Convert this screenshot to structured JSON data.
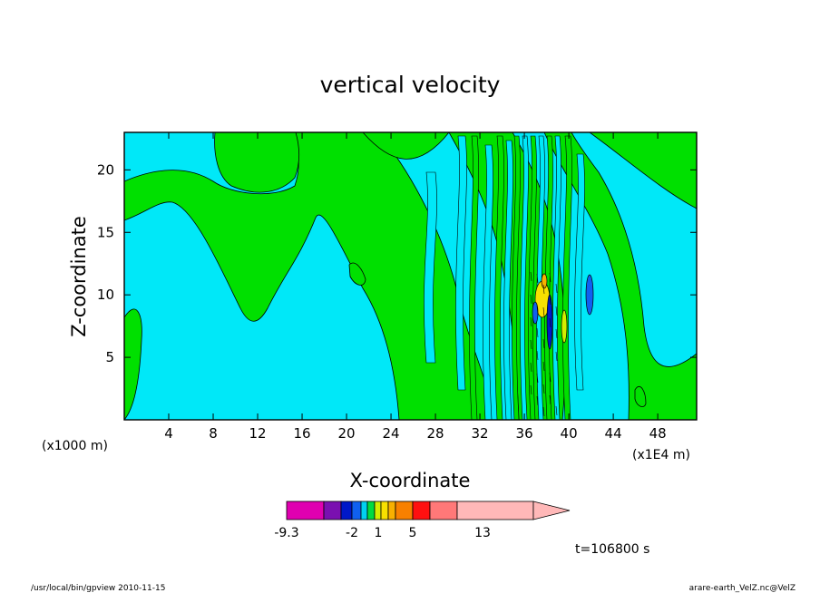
{
  "chart_data": {
    "type": "heatmap",
    "title": "vertical velocity",
    "xlabel": "X-coordinate",
    "ylabel": "Z-coordinate",
    "x_units_left": "(x1000 m)",
    "x_units_right": "(x1E4 m)",
    "xlim": [
      0,
      51.5
    ],
    "ylim": [
      0,
      23
    ],
    "xticks": [
      4,
      8,
      12,
      16,
      20,
      24,
      28,
      32,
      36,
      40,
      44,
      48
    ],
    "yticks": [
      5,
      10,
      15,
      20
    ],
    "colorbar": {
      "colors": [
        "#e000b0",
        "#7a10b0",
        "#0018c8",
        "#1060f0",
        "#00d0f0",
        "#00dc40",
        "#d4ee00",
        "#f8e000",
        "#f8b000",
        "#f88000",
        "#ff1010",
        "#ff7878",
        "#ffb8b8"
      ],
      "labels": [
        "-9.3",
        "-2",
        "1",
        "5",
        "13"
      ]
    },
    "time_label": "t=106800 s",
    "footer_left": "/usr/local/bin/gpview  2010-11-15",
    "footer_right": "arare-earth_VelZ.nc@VelZ",
    "background_color": "#00e8f8",
    "positive_color": "#00e000"
  }
}
